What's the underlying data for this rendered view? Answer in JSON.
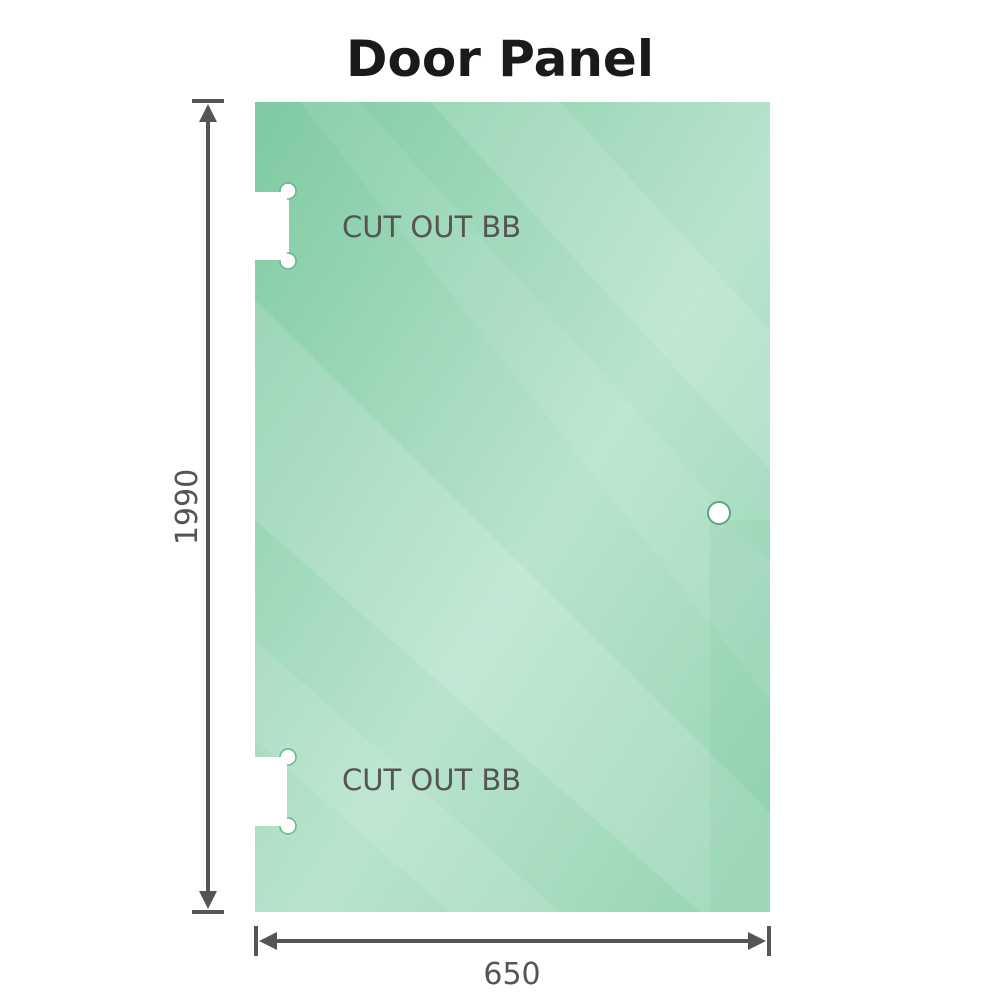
{
  "title": "Door Panel",
  "panel": {
    "cutout_top_label": "CUT OUT BB",
    "cutout_bottom_label": "CUT OUT BB",
    "glass_color": "#86cfa8",
    "highlight_color": "#bde6cf"
  },
  "dimensions": {
    "height": "1990",
    "width": "650",
    "line_color": "#555555"
  }
}
